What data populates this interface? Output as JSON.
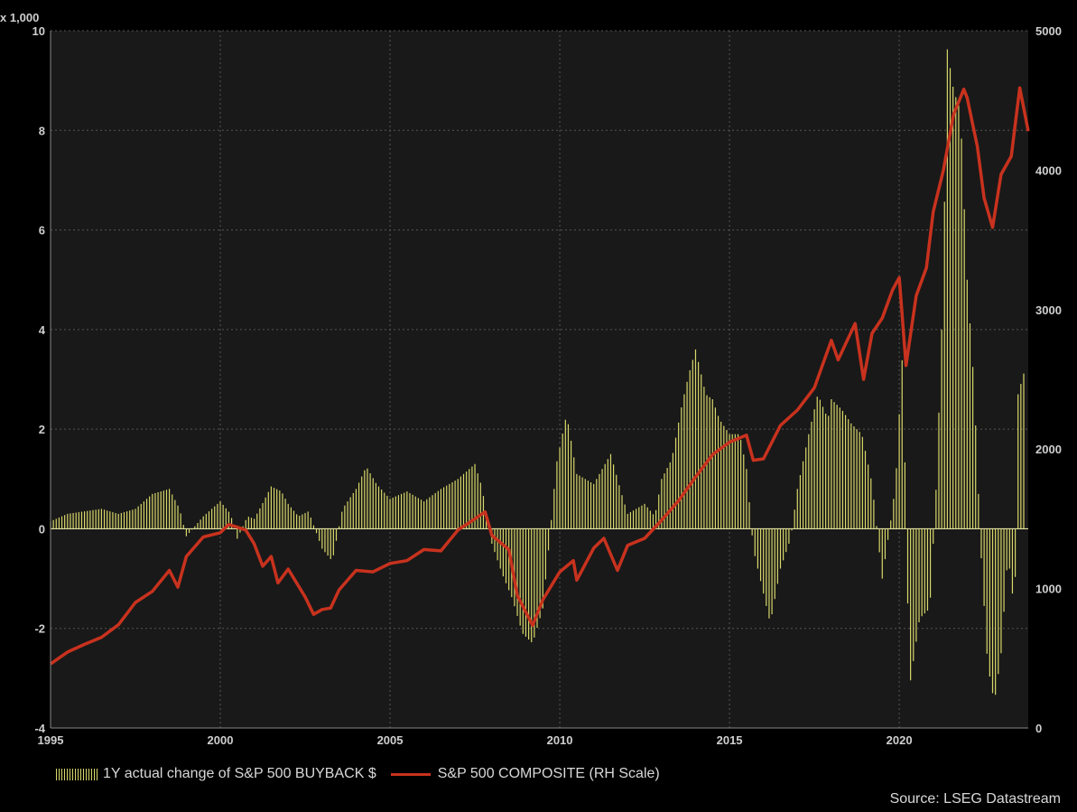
{
  "chart_data": {
    "type": "bar+line",
    "x_ticks": [
      "1995",
      "2000",
      "2005",
      "2010",
      "2015",
      "2020"
    ],
    "x_range": [
      1995,
      2023.8
    ],
    "left_axis": {
      "unit": "x 1,000",
      "range": [
        -4,
        10
      ],
      "ticks": [
        "10",
        "8",
        "6",
        "4",
        "2",
        "0",
        "-2",
        "-4"
      ]
    },
    "right_axis": {
      "range": [
        0,
        5000
      ],
      "ticks": [
        "5000",
        "4000",
        "3000",
        "2000",
        "1000",
        "0"
      ]
    },
    "grid": true,
    "legend_position": "bottom-left",
    "source": "Source: LSEG Datastream",
    "colors": {
      "background": "#000000",
      "plot_bg": "#191919",
      "bars": "#d9d86a",
      "line": "#c8321e",
      "zero_line": "#e0e0a0"
    },
    "bar_series": {
      "name": "1Y actual change of S&P 500 BUYBACK $",
      "axis": "left",
      "points": [
        [
          1995.0,
          0.15
        ],
        [
          1995.5,
          0.3
        ],
        [
          1996.0,
          0.35
        ],
        [
          1996.5,
          0.4
        ],
        [
          1997.0,
          0.3
        ],
        [
          1997.5,
          0.4
        ],
        [
          1998.0,
          0.7
        ],
        [
          1998.5,
          0.8
        ],
        [
          1998.8,
          0.4
        ],
        [
          1999.0,
          -0.15
        ],
        [
          1999.5,
          0.25
        ],
        [
          2000.0,
          0.55
        ],
        [
          2000.3,
          0.3
        ],
        [
          2000.5,
          -0.2
        ],
        [
          2000.8,
          0.25
        ],
        [
          2001.0,
          0.2
        ],
        [
          2001.2,
          0.45
        ],
        [
          2001.5,
          0.85
        ],
        [
          2001.8,
          0.75
        ],
        [
          2002.0,
          0.5
        ],
        [
          2002.3,
          0.25
        ],
        [
          2002.6,
          0.35
        ],
        [
          2003.0,
          -0.4
        ],
        [
          2003.3,
          -0.65
        ],
        [
          2003.6,
          0.4
        ],
        [
          2004.0,
          0.8
        ],
        [
          2004.3,
          1.25
        ],
        [
          2004.6,
          0.9
        ],
        [
          2005.0,
          0.6
        ],
        [
          2005.5,
          0.75
        ],
        [
          2006.0,
          0.55
        ],
        [
          2006.5,
          0.8
        ],
        [
          2007.0,
          1.0
        ],
        [
          2007.5,
          1.3
        ],
        [
          2007.7,
          0.85
        ],
        [
          2008.0,
          -0.3
        ],
        [
          2008.3,
          -0.9
        ],
        [
          2008.6,
          -1.4
        ],
        [
          2008.9,
          -2.1
        ],
        [
          2009.2,
          -2.3
        ],
        [
          2009.5,
          -1.6
        ],
        [
          2009.7,
          -0.2
        ],
        [
          2009.9,
          1.3
        ],
        [
          2010.2,
          2.3
        ],
        [
          2010.5,
          1.1
        ],
        [
          2011.0,
          0.9
        ],
        [
          2011.5,
          1.5
        ],
        [
          2011.8,
          0.75
        ],
        [
          2012.0,
          0.3
        ],
        [
          2012.5,
          0.5
        ],
        [
          2012.8,
          0.25
        ],
        [
          2013.0,
          1.0
        ],
        [
          2013.3,
          1.4
        ],
        [
          2013.6,
          2.5
        ],
        [
          2013.8,
          3.1
        ],
        [
          2014.0,
          3.6
        ],
        [
          2014.3,
          2.7
        ],
        [
          2014.5,
          2.6
        ],
        [
          2014.7,
          2.2
        ],
        [
          2015.0,
          1.9
        ],
        [
          2015.3,
          1.9
        ],
        [
          2015.5,
          1.2
        ],
        [
          2015.7,
          -0.4
        ],
        [
          2016.0,
          -1.3
        ],
        [
          2016.2,
          -1.9
        ],
        [
          2016.5,
          -0.8
        ],
        [
          2016.8,
          -0.2
        ],
        [
          2017.0,
          0.8
        ],
        [
          2017.3,
          1.8
        ],
        [
          2017.6,
          2.7
        ],
        [
          2017.9,
          2.2
        ],
        [
          2018.0,
          2.6
        ],
        [
          2018.3,
          2.4
        ],
        [
          2018.6,
          2.1
        ],
        [
          2018.9,
          1.9
        ],
        [
          2019.2,
          0.9
        ],
        [
          2019.5,
          -1.0
        ],
        [
          2019.8,
          0.4
        ],
        [
          2019.9,
          1.0
        ],
        [
          2020.1,
          3.6
        ],
        [
          2020.3,
          -3.2
        ],
        [
          2020.6,
          -1.8
        ],
        [
          2020.9,
          -1.6
        ],
        [
          2021.1,
          1.0
        ],
        [
          2021.3,
          5.0
        ],
        [
          2021.4,
          9.7
        ],
        [
          2021.6,
          8.8
        ],
        [
          2021.8,
          8.4
        ],
        [
          2022.0,
          5.0
        ],
        [
          2022.2,
          2.9
        ],
        [
          2022.4,
          -0.4
        ],
        [
          2022.6,
          -2.7
        ],
        [
          2022.8,
          -3.5
        ],
        [
          2023.0,
          -2.5
        ],
        [
          2023.2,
          -0.5
        ],
        [
          2023.4,
          -1.7
        ],
        [
          2023.5,
          2.7
        ],
        [
          2023.7,
          3.2
        ]
      ]
    },
    "line_series": {
      "name": "S&P 500 COMPOSITE (RH Scale)",
      "axis": "right",
      "points": [
        [
          1995.0,
          459
        ],
        [
          1995.5,
          545
        ],
        [
          1996.0,
          600
        ],
        [
          1996.5,
          650
        ],
        [
          1997.0,
          740
        ],
        [
          1997.5,
          900
        ],
        [
          1998.0,
          980
        ],
        [
          1998.5,
          1130
        ],
        [
          1998.75,
          1010
        ],
        [
          1999.0,
          1230
        ],
        [
          1999.5,
          1370
        ],
        [
          2000.0,
          1400
        ],
        [
          2000.25,
          1460
        ],
        [
          2000.5,
          1440
        ],
        [
          2000.75,
          1420
        ],
        [
          2001.0,
          1320
        ],
        [
          2001.25,
          1160
        ],
        [
          2001.5,
          1230
        ],
        [
          2001.7,
          1040
        ],
        [
          2002.0,
          1140
        ],
        [
          2002.5,
          940
        ],
        [
          2002.75,
          815
        ],
        [
          2003.0,
          850
        ],
        [
          2003.25,
          860
        ],
        [
          2003.5,
          990
        ],
        [
          2004.0,
          1130
        ],
        [
          2004.5,
          1120
        ],
        [
          2005.0,
          1180
        ],
        [
          2005.5,
          1200
        ],
        [
          2006.0,
          1280
        ],
        [
          2006.5,
          1270
        ],
        [
          2007.0,
          1420
        ],
        [
          2007.5,
          1500
        ],
        [
          2007.8,
          1550
        ],
        [
          2008.0,
          1380
        ],
        [
          2008.5,
          1280
        ],
        [
          2008.75,
          950
        ],
        [
          2009.0,
          830
        ],
        [
          2009.2,
          735
        ],
        [
          2009.5,
          920
        ],
        [
          2010.0,
          1120
        ],
        [
          2010.4,
          1200
        ],
        [
          2010.5,
          1060
        ],
        [
          2011.0,
          1290
        ],
        [
          2011.3,
          1360
        ],
        [
          2011.7,
          1130
        ],
        [
          2012.0,
          1310
        ],
        [
          2012.5,
          1360
        ],
        [
          2013.0,
          1490
        ],
        [
          2013.5,
          1630
        ],
        [
          2014.0,
          1800
        ],
        [
          2014.5,
          1960
        ],
        [
          2015.0,
          2050
        ],
        [
          2015.5,
          2100
        ],
        [
          2015.7,
          1920
        ],
        [
          2016.0,
          1930
        ],
        [
          2016.5,
          2170
        ],
        [
          2017.0,
          2280
        ],
        [
          2017.5,
          2440
        ],
        [
          2018.0,
          2780
        ],
        [
          2018.2,
          2640
        ],
        [
          2018.7,
          2900
        ],
        [
          2018.95,
          2500
        ],
        [
          2019.2,
          2830
        ],
        [
          2019.5,
          2940
        ],
        [
          2019.8,
          3140
        ],
        [
          2020.0,
          3230
        ],
        [
          2020.2,
          2600
        ],
        [
          2020.5,
          3100
        ],
        [
          2020.8,
          3300
        ],
        [
          2021.0,
          3700
        ],
        [
          2021.3,
          4000
        ],
        [
          2021.6,
          4400
        ],
        [
          2021.9,
          4580
        ],
        [
          2022.0,
          4520
        ],
        [
          2022.3,
          4170
        ],
        [
          2022.5,
          3800
        ],
        [
          2022.75,
          3590
        ],
        [
          2023.0,
          3970
        ],
        [
          2023.3,
          4100
        ],
        [
          2023.55,
          4590
        ],
        [
          2023.8,
          4280
        ]
      ]
    }
  }
}
